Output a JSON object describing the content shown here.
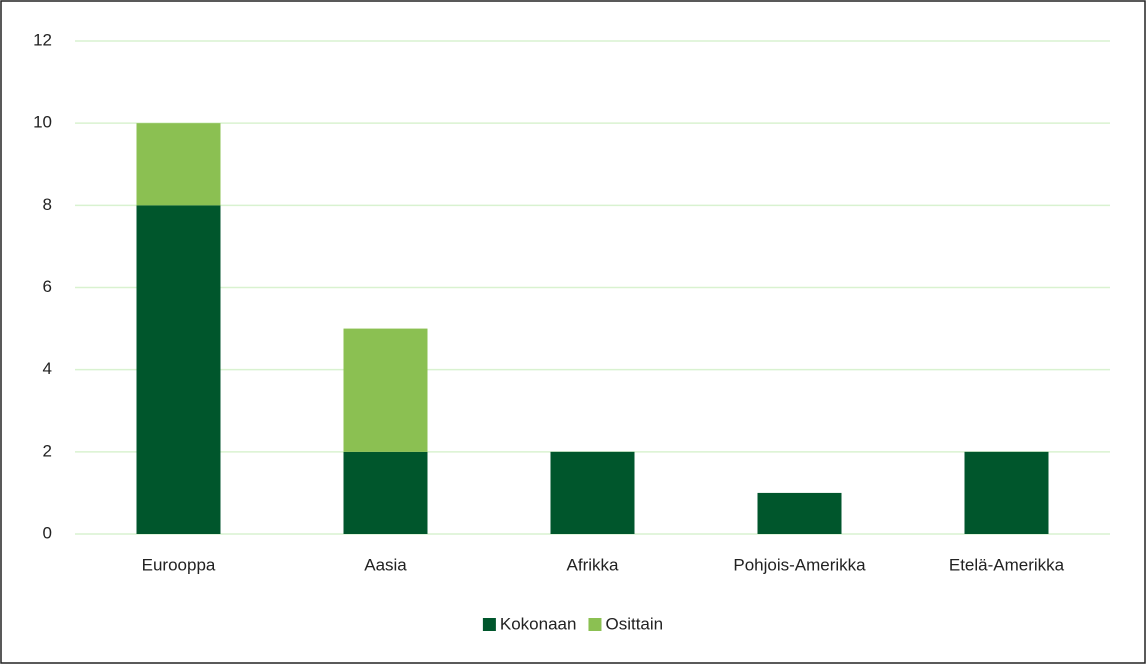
{
  "chart_data": {
    "type": "bar",
    "stacked": true,
    "categories": [
      "Eurooppa",
      "Aasia",
      "Afrikka",
      "Pohjois-Amerikka",
      "Etelä-Amerikka"
    ],
    "series": [
      {
        "name": "Kokonaan",
        "color": "#00562c",
        "values": [
          8,
          2,
          2,
          1,
          2
        ]
      },
      {
        "name": "Osittain",
        "color": "#8bc052",
        "values": [
          2,
          3,
          0,
          0,
          0
        ]
      }
    ],
    "ylim": [
      0,
      12
    ],
    "yticks": [
      0,
      2,
      4,
      6,
      8,
      10,
      12
    ],
    "grid": true,
    "legend": "bottom"
  }
}
